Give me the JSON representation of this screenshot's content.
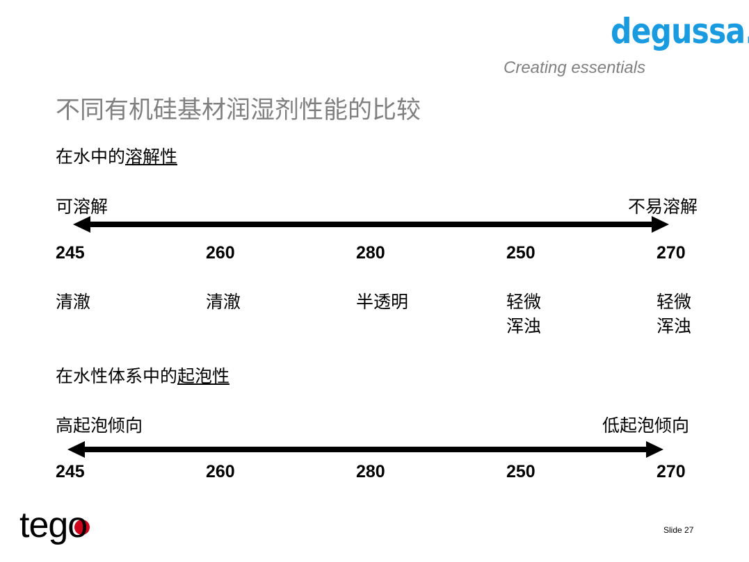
{
  "brand": {
    "name": "degussa.",
    "tagline": "Creating essentials",
    "color": "#1a9be0"
  },
  "title": "不同有机硅基材润湿剂性能的比较",
  "sections": [
    {
      "heading_prefix": "在水中的",
      "heading_underlined": "溶解性",
      "left_label": "可溶解",
      "right_label": "不易溶解",
      "values": [
        "245",
        "260",
        "280",
        "250",
        "270"
      ],
      "descriptions": [
        [
          "清澈"
        ],
        [
          "清澈"
        ],
        [
          "半透明"
        ],
        [
          "轻微",
          "浑浊"
        ],
        [
          "轻微",
          "浑浊"
        ]
      ]
    },
    {
      "heading_prefix": "在水性体系中的",
      "heading_underlined": "起泡性",
      "left_label": "高起泡倾向",
      "right_label": "低起泡倾向",
      "values": [
        "245",
        "260",
        "280",
        "250",
        "270"
      ]
    }
  ],
  "footer": {
    "logo": "tego",
    "logo_dot_color": "#d0021b",
    "slide": "Slide 27"
  }
}
